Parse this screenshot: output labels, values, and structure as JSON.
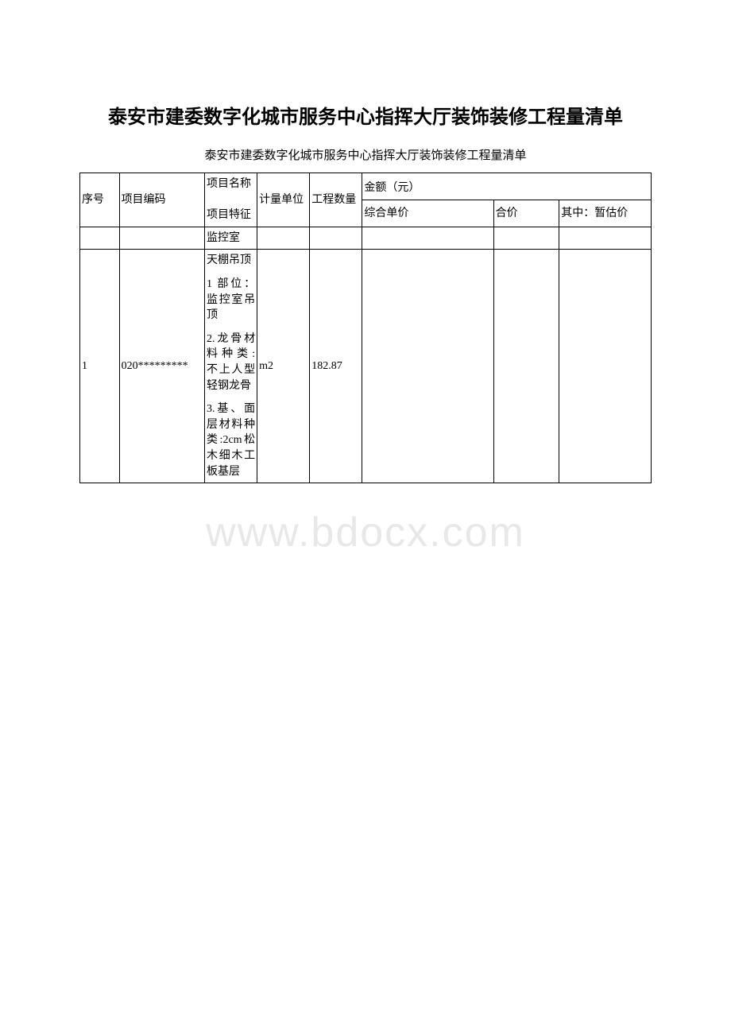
{
  "document": {
    "title": "泰安市建委数字化城市服务中心指挥大厅装饰装修工程量清单",
    "subtitle": "泰安市建委数字化城市服务中心指挥大厅装饰装修工程量清单",
    "watermark": "www.bdocx.com"
  },
  "headers": {
    "seq": "序号",
    "code": "项目编码",
    "desc_name": "项目名称",
    "desc_feature": "项目特征",
    "unit": "计量单位",
    "quantity": "工程数量",
    "amount_group": "金额（元）",
    "unit_price": "综合单价",
    "total_price": "合价",
    "provisional": "其中：暂估价"
  },
  "section": {
    "name": "监控室"
  },
  "rows": {
    "r1": {
      "seq": "1",
      "code": "020*********",
      "desc_title": "天棚吊顶",
      "desc_p1": "1 部位：监控室吊顶",
      "desc_p2": "2.龙骨材料种类: 不上人型轻钢龙骨",
      "desc_p3": "3.基、面层材料种类:2cm松木细木工板基层",
      "unit": "m2",
      "quantity": "182.87"
    }
  },
  "style": {
    "border_color": "#000000",
    "background_color": "#ffffff",
    "watermark_color": "#e8e8e8",
    "title_fontsize": 24,
    "body_fontsize": 14
  }
}
